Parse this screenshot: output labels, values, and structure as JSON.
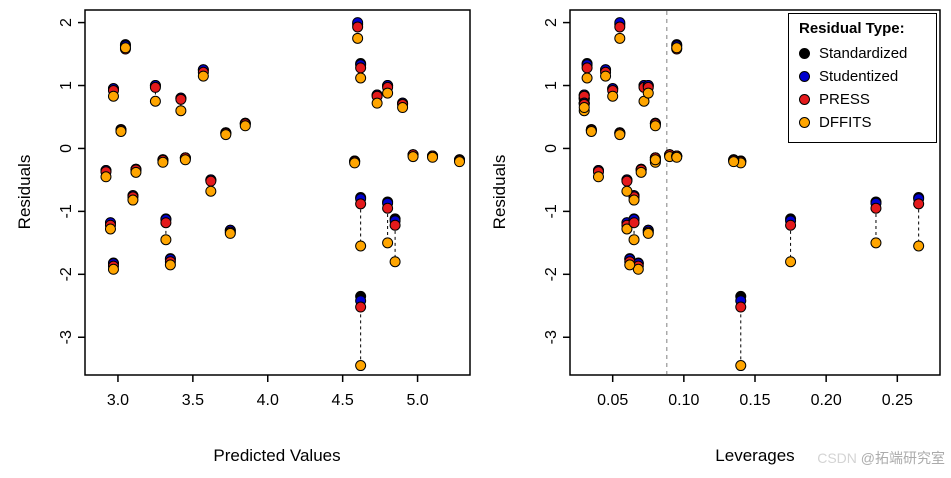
{
  "figure": {
    "background": "#ffffff"
  },
  "chart_data": {
    "type": "scatter",
    "title": "",
    "ylim": [
      -3.6,
      2.2
    ],
    "yticks": [
      -3,
      -2,
      -1,
      0,
      1,
      2
    ],
    "series": [
      {
        "name": "Standardized",
        "color": "#000000"
      },
      {
        "name": "Studentized",
        "color": "#0000CD"
      },
      {
        "name": "PRESS",
        "color": "#E41A1C"
      },
      {
        "name": "DFFITS",
        "color": "#FFA500"
      }
    ],
    "legend": {
      "title": "Residual Type:",
      "position": "top-right"
    },
    "connector": {
      "style": "dashed",
      "color": "#000000"
    },
    "panels": [
      {
        "xkey": "fitted",
        "xlabel": "Predicted Values",
        "ylabel": "Residuals",
        "xlim": [
          2.78,
          5.35
        ],
        "xticks": [
          3.0,
          3.5,
          4.0,
          4.5,
          5.0
        ],
        "xtick_decimals": 1,
        "grid": false
      },
      {
        "xkey": "leverage",
        "xlabel": "Leverages",
        "ylabel": "Residuals",
        "xlim": [
          0.02,
          0.28
        ],
        "xticks": [
          0.05,
          0.1,
          0.15,
          0.2,
          0.25
        ],
        "xtick_decimals": 2,
        "grid": false,
        "vline": {
          "x": 0.088,
          "color": "#9e9e9e",
          "style": "dashed"
        }
      }
    ],
    "observations": [
      {
        "fitted": 2.97,
        "leverage": 0.05,
        "residuals": [
          0.95,
          0.95,
          0.92,
          0.83
        ]
      },
      {
        "fitted": 2.92,
        "leverage": 0.04,
        "residuals": [
          -0.35,
          -0.35,
          -0.37,
          -0.45
        ]
      },
      {
        "fitted": 2.95,
        "leverage": 0.06,
        "residuals": [
          -1.18,
          -1.18,
          -1.22,
          -1.28
        ]
      },
      {
        "fitted": 2.97,
        "leverage": 0.068,
        "residuals": [
          -1.82,
          -1.83,
          -1.87,
          -1.92
        ]
      },
      {
        "fitted": 3.05,
        "leverage": 0.095,
        "residuals": [
          1.65,
          1.63,
          1.58,
          1.6
        ]
      },
      {
        "fitted": 3.02,
        "leverage": 0.035,
        "residuals": [
          0.3,
          0.3,
          0.29,
          0.27
        ]
      },
      {
        "fitted": 3.12,
        "leverage": 0.07,
        "residuals": [
          -0.33,
          -0.33,
          -0.34,
          -0.38
        ]
      },
      {
        "fitted": 3.1,
        "leverage": 0.065,
        "residuals": [
          -0.75,
          -0.75,
          -0.77,
          -0.82
        ]
      },
      {
        "fitted": 3.25,
        "leverage": 0.072,
        "residuals": [
          1.0,
          1.0,
          0.97,
          0.75
        ]
      },
      {
        "fitted": 3.3,
        "leverage": 0.08,
        "residuals": [
          -0.18,
          -0.18,
          -0.19,
          -0.22
        ]
      },
      {
        "fitted": 3.32,
        "leverage": 0.065,
        "residuals": [
          -1.12,
          -1.13,
          -1.18,
          -1.45
        ]
      },
      {
        "fitted": 3.35,
        "leverage": 0.062,
        "residuals": [
          -1.75,
          -1.76,
          -1.8,
          -1.85
        ]
      },
      {
        "fitted": 3.42,
        "leverage": 0.03,
        "residuals": [
          0.8,
          0.8,
          0.78,
          0.6
        ]
      },
      {
        "fitted": 3.45,
        "leverage": 0.08,
        "residuals": [
          -0.15,
          -0.15,
          -0.15,
          -0.18
        ]
      },
      {
        "fitted": 3.57,
        "leverage": 0.045,
        "residuals": [
          1.25,
          1.25,
          1.21,
          1.15
        ]
      },
      {
        "fitted": 3.62,
        "leverage": 0.06,
        "residuals": [
          -0.5,
          -0.5,
          -0.52,
          -0.68
        ]
      },
      {
        "fitted": 3.72,
        "leverage": 0.055,
        "residuals": [
          0.25,
          0.25,
          0.24,
          0.22
        ]
      },
      {
        "fitted": 3.75,
        "leverage": 0.075,
        "residuals": [
          -1.3,
          -1.3,
          -1.33,
          -1.35
        ]
      },
      {
        "fitted": 3.85,
        "leverage": 0.08,
        "residuals": [
          0.4,
          0.4,
          0.39,
          0.36
        ]
      },
      {
        "fitted": 4.6,
        "leverage": 0.055,
        "residuals": [
          1.97,
          2.0,
          1.93,
          1.75
        ]
      },
      {
        "fitted": 4.62,
        "leverage": 0.032,
        "residuals": [
          1.35,
          1.33,
          1.28,
          1.12
        ]
      },
      {
        "fitted": 4.58,
        "leverage": 0.14,
        "residuals": [
          -0.2,
          -0.2,
          -0.21,
          -0.23
        ]
      },
      {
        "fitted": 4.62,
        "leverage": 0.265,
        "residuals": [
          -0.78,
          -0.8,
          -0.88,
          -1.55
        ]
      },
      {
        "fitted": 4.62,
        "leverage": 0.14,
        "residuals": [
          -2.35,
          -2.42,
          -2.52,
          -3.45
        ]
      },
      {
        "fitted": 4.73,
        "leverage": 0.03,
        "residuals": [
          0.85,
          0.85,
          0.83,
          0.72
        ]
      },
      {
        "fitted": 4.8,
        "leverage": 0.075,
        "residuals": [
          1.0,
          1.0,
          0.97,
          0.88
        ]
      },
      {
        "fitted": 4.8,
        "leverage": 0.235,
        "residuals": [
          -0.85,
          -0.87,
          -0.95,
          -1.5
        ]
      },
      {
        "fitted": 4.85,
        "leverage": 0.175,
        "residuals": [
          -1.12,
          -1.15,
          -1.22,
          -1.8
        ]
      },
      {
        "fitted": 4.9,
        "leverage": 0.03,
        "residuals": [
          0.72,
          0.72,
          0.7,
          0.65
        ]
      },
      {
        "fitted": 4.97,
        "leverage": 0.09,
        "residuals": [
          -0.1,
          -0.1,
          -0.1,
          -0.13
        ]
      },
      {
        "fitted": 5.1,
        "leverage": 0.095,
        "residuals": [
          -0.12,
          -0.12,
          -0.12,
          -0.14
        ]
      },
      {
        "fitted": 5.28,
        "leverage": 0.135,
        "residuals": [
          -0.18,
          -0.18,
          -0.19,
          -0.21
        ]
      }
    ]
  },
  "watermark": {
    "prefix": "CSDN ",
    "suffix": "@拓端研究室"
  }
}
